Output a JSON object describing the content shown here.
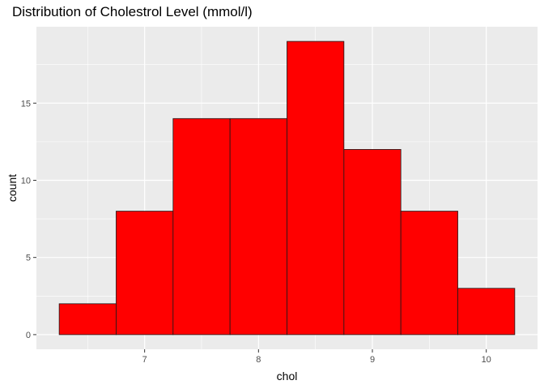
{
  "chart_data": {
    "type": "bar",
    "title": "Distribution of Cholestrol Level (mmol/l)",
    "xlabel": "chol",
    "ylabel": "count",
    "bins": [
      {
        "x0": 6.25,
        "x1": 6.75,
        "count": 2
      },
      {
        "x0": 6.75,
        "x1": 7.25,
        "count": 8
      },
      {
        "x0": 7.25,
        "x1": 7.75,
        "count": 14
      },
      {
        "x0": 7.75,
        "x1": 8.25,
        "count": 14
      },
      {
        "x0": 8.25,
        "x1": 8.75,
        "count": 19
      },
      {
        "x0": 8.75,
        "x1": 9.25,
        "count": 12
      },
      {
        "x0": 9.25,
        "x1": 9.75,
        "count": 8
      },
      {
        "x0": 9.75,
        "x1": 10.25,
        "count": 3
      }
    ],
    "xlim": [
      6.05,
      10.45
    ],
    "ylim": [
      -0.95,
      19.95
    ],
    "xticks": [
      7,
      8,
      9,
      10
    ],
    "yticks": [
      0,
      5,
      10,
      15
    ],
    "grid": true,
    "fill_color": "#FF0000",
    "outline_color": "#1a1a1a",
    "panel_background": "#EBEBEB"
  }
}
